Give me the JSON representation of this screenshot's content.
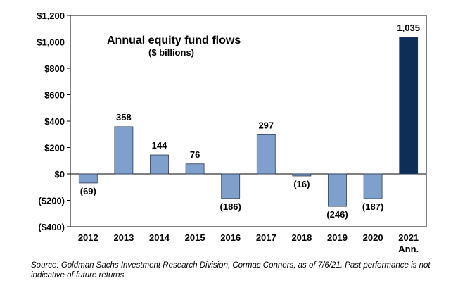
{
  "chart_data": {
    "type": "bar",
    "title": "Annual equity fund flows",
    "subtitle": "($ billions)",
    "categories": [
      "2012",
      "2013",
      "2014",
      "2015",
      "2016",
      "2017",
      "2018",
      "2019",
      "2020",
      "2021"
    ],
    "category_sublabels": [
      "",
      "",
      "",
      "",
      "",
      "",
      "",
      "",
      "",
      "Ann."
    ],
    "values": [
      -69,
      358,
      144,
      76,
      -186,
      297,
      -16,
      -246,
      -187,
      1035
    ],
    "data_labels": [
      "(69)",
      "358",
      "144",
      "76",
      "(186)",
      "297",
      "(16)",
      "(246)",
      "(187)",
      "1,035"
    ],
    "ylim": [
      -400,
      1200
    ],
    "yticks": [
      1200,
      1000,
      800,
      600,
      400,
      200,
      0,
      -200,
      -400
    ],
    "ytick_labels": [
      "$1,200",
      "$1,000",
      "$800",
      "$600",
      "$400",
      "$200",
      "$0",
      "($200)",
      "($400)"
    ],
    "xlabel": "",
    "ylabel": "",
    "grid": false,
    "colors": {
      "bar": "#7f9fcd",
      "highlight_bar": "#0d2f57",
      "bar_edge": "#2b3a55",
      "axis": "#000000"
    },
    "highlight_index": 9
  },
  "source_note": "Source: Goldman Sachs Investment Research Division, Cormac Conners, as of 7/6/21. Past performance is not indicative of future returns."
}
